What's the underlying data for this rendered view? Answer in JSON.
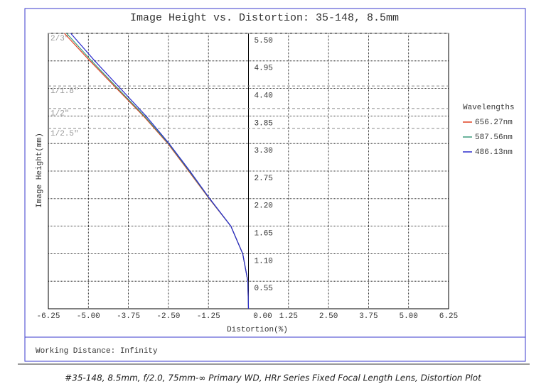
{
  "chart_data": {
    "type": "line",
    "title": "Image Height vs. Distortion: 35-148, 8.5mm",
    "xlabel": "Distortion(%)",
    "ylabel": "Image Height(mm)",
    "legend_title": "Wavelengths",
    "footer": "Working Distance: Infinity",
    "xlim": [
      -6.25,
      6.25
    ],
    "ylim": [
      0,
      5.5
    ],
    "xticks": [
      -6.25,
      {
        "value": -5,
        "label": "-5.00"
      },
      -3.75,
      {
        "value": -2.5,
        "label": "-2.50"
      },
      -1.25,
      {
        "value": 0,
        "label": "0.00"
      },
      1.25,
      {
        "value": 2.5,
        "label": "2.50"
      },
      3.75,
      {
        "value": 5,
        "label": "5.00"
      },
      6.25
    ],
    "yticks": [
      0.55,
      {
        "value": 1.1,
        "label": "1.10"
      },
      1.65,
      {
        "value": 2.2,
        "label": "2.20"
      },
      2.75,
      {
        "value": 3.3,
        "label": "3.30"
      },
      3.85,
      {
        "value": 4.4,
        "label": "4.40"
      },
      4.95,
      {
        "value": 5.5,
        "label": "5.50"
      }
    ],
    "grid": true,
    "legend": "right",
    "sensors": [
      {
        "label": "2/3\"",
        "value": 5.5
      },
      {
        "label": "1/1.8\"",
        "value": 4.45
      },
      {
        "label": "1/2\"",
        "value": 4.0
      },
      {
        "label": "1/2.5\"",
        "value": 3.6
      }
    ],
    "y": [
      0,
      0.55,
      1.1,
      1.65,
      2.2,
      2.75,
      3.3,
      3.85,
      4.4,
      4.95,
      5.5
    ],
    "series": [
      {
        "name": "656.27nm",
        "color": "#e04020",
        "x": [
          0,
          -0.02,
          -0.18,
          -0.55,
          -1.23,
          -1.87,
          -2.52,
          -3.28,
          -4.12,
          -4.95,
          -5.75
        ]
      },
      {
        "name": "587.56nm",
        "color": "#3a9a7a",
        "x": [
          0,
          -0.02,
          -0.18,
          -0.55,
          -1.22,
          -1.85,
          -2.5,
          -3.25,
          -4.08,
          -4.9,
          -5.68
        ]
      },
      {
        "name": "486.13nm",
        "color": "#2a2acc",
        "x": [
          0,
          -0.02,
          -0.18,
          -0.55,
          -1.21,
          -1.83,
          -2.48,
          -3.2,
          -4.0,
          -4.8,
          -5.55
        ]
      }
    ]
  },
  "caption": "#35-148, 8.5mm, f/2.0, 75mm-∞ Primary WD, HRr Series Fixed Focal Length Lens, Distortion Plot"
}
